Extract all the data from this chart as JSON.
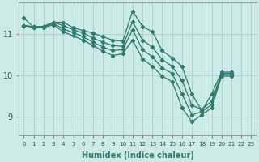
{
  "xlabel": "Humidex (Indice chaleur)",
  "background_color": "#cceae7",
  "grid_color": "#aad4d0",
  "line_color": "#2d7a6e",
  "x_values": [
    0,
    1,
    2,
    3,
    4,
    5,
    6,
    7,
    8,
    9,
    10,
    11,
    12,
    13,
    14,
    15,
    16,
    17,
    18,
    19,
    20,
    21,
    22,
    23
  ],
  "series": [
    [
      11.38,
      11.16,
      null,
      null,
      null,
      null,
      null,
      null,
      null,
      null,
      null,
      null,
      null,
      null,
      null,
      null,
      null,
      null,
      null,
      null,
      null,
      null,
      null,
      null
    ],
    [
      11.2,
      11.17,
      11.18,
      11.28,
      11.28,
      11.15,
      11.08,
      11.02,
      10.93,
      10.85,
      10.82,
      11.55,
      11.18,
      11.05,
      10.6,
      10.42,
      10.22,
      9.55,
      9.15,
      9.55,
      10.08,
      10.08,
      null,
      null
    ],
    [
      11.2,
      11.17,
      11.18,
      11.28,
      11.2,
      11.1,
      11.02,
      10.9,
      10.8,
      10.72,
      10.7,
      11.3,
      10.85,
      10.68,
      10.38,
      10.22,
      9.88,
      9.28,
      9.18,
      9.38,
      10.05,
      10.05,
      null,
      null
    ],
    [
      11.2,
      11.17,
      11.17,
      11.25,
      11.12,
      11.03,
      10.93,
      10.8,
      10.68,
      10.6,
      10.62,
      11.1,
      10.62,
      10.45,
      10.18,
      10.05,
      9.55,
      9.05,
      9.12,
      9.3,
      10.02,
      10.02,
      null,
      null
    ],
    [
      11.2,
      11.15,
      11.15,
      11.22,
      11.05,
      10.95,
      10.85,
      10.72,
      10.58,
      10.48,
      10.52,
      10.85,
      10.4,
      10.22,
      9.98,
      9.85,
      9.22,
      8.88,
      9.05,
      9.22,
      9.98,
      9.98,
      null,
      null
    ]
  ],
  "yticks": [
    9,
    10,
    11
  ],
  "xticks": [
    0,
    1,
    2,
    3,
    4,
    5,
    6,
    7,
    8,
    9,
    10,
    11,
    12,
    13,
    14,
    15,
    16,
    17,
    18,
    19,
    20,
    21,
    22,
    23
  ],
  "ylim": [
    8.55,
    11.75
  ],
  "xlim": [
    -0.5,
    23.5
  ]
}
